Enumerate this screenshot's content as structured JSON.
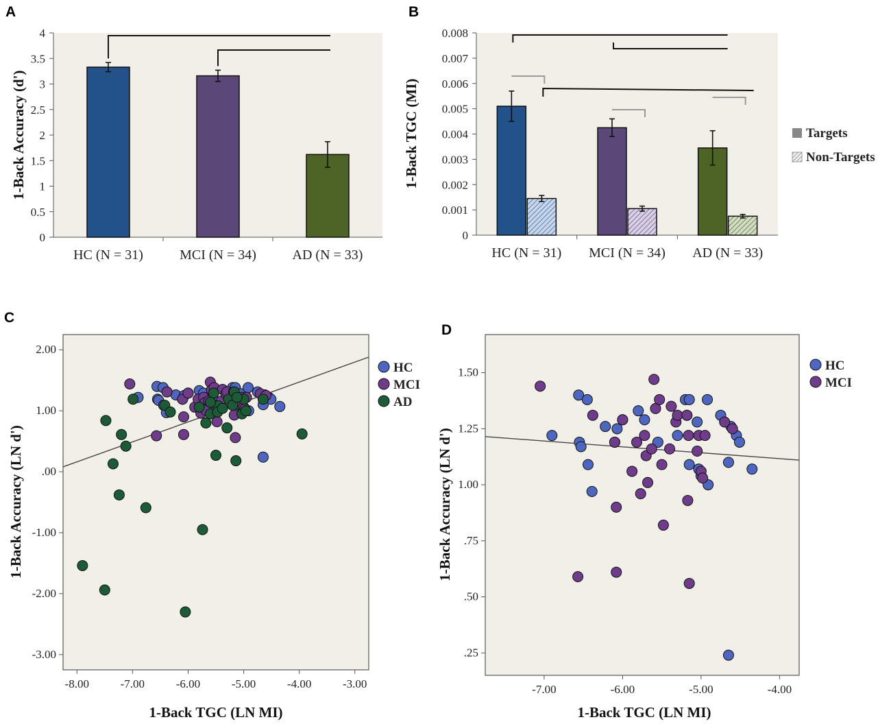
{
  "panels": {
    "a": "A",
    "b": "B",
    "c": "C",
    "d": "D"
  },
  "legend_ab": {
    "targets": "Targets",
    "non_targets": "Non-Targets"
  },
  "colors": {
    "hc_bar": "#235189",
    "mci_bar": "#5c4878",
    "ad_bar": "#4e6326",
    "plot_bg": "#f1f0e8",
    "hc_dot": "#4e66c0",
    "mci_dot": "#6f3c8c",
    "ad_dot": "#1c5a38"
  },
  "chart_data": [
    {
      "id": "A",
      "type": "bar",
      "title": "",
      "xlabel": "",
      "ylabel": "1-Back Accuracy (d')",
      "ylim": [
        0,
        4
      ],
      "yticks": [
        "0",
        "0.5",
        "1",
        "1.5",
        "2",
        "2.5",
        "3",
        "3.5",
        "4"
      ],
      "categories": [
        "HC (N = 31)",
        "MCI (N = 34)",
        "AD (N = 33)"
      ],
      "values": [
        3.33,
        3.16,
        1.62
      ],
      "errors": [
        0.09,
        0.11,
        0.25
      ],
      "significance_brackets": [
        [
          0,
          2
        ],
        [
          1,
          2
        ]
      ]
    },
    {
      "id": "B",
      "type": "bar",
      "title": "",
      "xlabel": "",
      "ylabel": "1-Back TGC (MI)",
      "ylim": [
        0,
        0.008
      ],
      "yticks": [
        "0",
        "0.001",
        "0.002",
        "0.003",
        "0.004",
        "0.005",
        "0.006",
        "0.007",
        "0.008"
      ],
      "categories": [
        "HC (N = 31)",
        "MCI (N = 34)",
        "AD (N = 33)"
      ],
      "series": [
        {
          "name": "Targets",
          "values": [
            0.0051,
            0.00425,
            0.00345
          ],
          "errors": [
            0.0006,
            0.00035,
            0.00068
          ]
        },
        {
          "name": "Non-Targets",
          "values": [
            0.00145,
            0.00105,
            0.00075
          ],
          "errors": [
            0.00012,
            0.0001,
            7e-05
          ]
        }
      ],
      "legend": "right",
      "significance_brackets_targets": [
        [
          0,
          2
        ],
        [
          1,
          2
        ]
      ],
      "significance_brackets_targets_vs_nontargets": [
        0,
        1,
        2
      ],
      "significance_brackets_nontargets": [
        [
          0,
          2
        ]
      ]
    },
    {
      "id": "C",
      "type": "scatter",
      "title": "",
      "xlabel": "1-Back TGC (LN MI)",
      "ylabel": "1-Back Accuracy (LN d')",
      "xlim": [
        -8.25,
        -2.75
      ],
      "ylim": [
        -3.25,
        2.25
      ],
      "xticks": [
        "-8.00",
        "-7.00",
        "-6.00",
        "-5.00",
        "-4.00",
        "-3.00"
      ],
      "yticks": [
        "2.00",
        "1.00",
        ".00",
        "-1.00",
        "-2.00",
        "-3.00"
      ],
      "fit_line": [
        [
          -8.25,
          0.08
        ],
        [
          -2.75,
          1.88
        ]
      ],
      "legend": "right",
      "series": [
        {
          "name": "HC",
          "points": [
            [
              -6.9,
              1.22
            ],
            [
              -6.56,
              1.4
            ],
            [
              -6.55,
              1.19
            ],
            [
              -6.53,
              1.17
            ],
            [
              -6.45,
              1.38
            ],
            [
              -6.44,
              1.09
            ],
            [
              -6.39,
              0.97
            ],
            [
              -6.22,
              1.26
            ],
            [
              -6.1,
              1.19
            ],
            [
              -6.07,
              1.25
            ],
            [
              -6.0,
              1.29
            ],
            [
              -5.8,
              1.33
            ],
            [
              -5.72,
              1.29
            ],
            [
              -5.55,
              1.19
            ],
            [
              -5.3,
              1.22
            ],
            [
              -5.2,
              1.38
            ],
            [
              -5.18,
              1.31
            ],
            [
              -5.15,
              1.38
            ],
            [
              -5.15,
              1.09
            ],
            [
              -5.05,
              1.28
            ],
            [
              -5.03,
              1.07
            ],
            [
              -5.0,
              1.04
            ],
            [
              -4.92,
              1.38
            ],
            [
              -4.91,
              1.0
            ],
            [
              -4.75,
              1.31
            ],
            [
              -4.62,
              1.26
            ],
            [
              -4.55,
              1.22
            ],
            [
              -4.51,
              1.19
            ],
            [
              -4.35,
              1.07
            ],
            [
              -4.65,
              1.1
            ],
            [
              -4.65,
              0.24
            ]
          ]
        },
        {
          "name": "MCI",
          "points": [
            [
              -7.05,
              1.44
            ],
            [
              -6.57,
              0.59
            ],
            [
              -6.38,
              1.31
            ],
            [
              -6.1,
              1.19
            ],
            [
              -6.08,
              0.61
            ],
            [
              -6.08,
              0.9
            ],
            [
              -6.0,
              1.29
            ],
            [
              -5.88,
              1.06
            ],
            [
              -5.82,
              1.19
            ],
            [
              -5.77,
              0.96
            ],
            [
              -5.72,
              1.22
            ],
            [
              -5.7,
              1.13
            ],
            [
              -5.68,
              1.01
            ],
            [
              -5.63,
              1.16
            ],
            [
              -5.6,
              1.47
            ],
            [
              -5.58,
              1.34
            ],
            [
              -5.53,
              1.38
            ],
            [
              -5.5,
              1.09
            ],
            [
              -5.48,
              0.82
            ],
            [
              -5.4,
              1.16
            ],
            [
              -5.38,
              1.35
            ],
            [
              -5.32,
              1.28
            ],
            [
              -5.3,
              1.31
            ],
            [
              -5.18,
              1.31
            ],
            [
              -5.17,
              0.93
            ],
            [
              -5.16,
              1.22
            ],
            [
              -5.15,
              0.56
            ],
            [
              -5.05,
              1.15
            ],
            [
              -5.03,
              1.22
            ],
            [
              -5.0,
              1.06
            ],
            [
              -4.98,
              1.03
            ],
            [
              -4.95,
              1.22
            ],
            [
              -4.7,
              1.28
            ],
            [
              -4.6,
              1.25
            ]
          ]
        },
        {
          "name": "AD",
          "points": [
            [
              -7.9,
              -1.54
            ],
            [
              -7.5,
              -1.94
            ],
            [
              -7.48,
              0.84
            ],
            [
              -7.35,
              0.13
            ],
            [
              -7.24,
              -0.38
            ],
            [
              -7.2,
              0.61
            ],
            [
              -7.12,
              0.42
            ],
            [
              -6.99,
              1.19
            ],
            [
              -6.76,
              -0.59
            ],
            [
              -6.42,
              1.09
            ],
            [
              -6.32,
              0.98
            ],
            [
              -6.05,
              -2.3
            ],
            [
              -5.8,
              1.06
            ],
            [
              -5.74,
              -0.95
            ],
            [
              -5.68,
              0.8
            ],
            [
              -5.6,
              0.95
            ],
            [
              -5.54,
              1.29
            ],
            [
              -5.5,
              0.27
            ],
            [
              -5.46,
              1.08
            ],
            [
              -5.47,
              0.98
            ],
            [
              -5.3,
              0.72
            ],
            [
              -5.27,
              1.19
            ],
            [
              -5.2,
              1.09
            ],
            [
              -5.17,
              1.31
            ],
            [
              -5.14,
              0.18
            ],
            [
              -5.03,
              0.95
            ],
            [
              -5.0,
              1.19
            ],
            [
              -4.65,
              1.19
            ],
            [
              -3.95,
              0.62
            ],
            [
              -5.6,
              1.14
            ],
            [
              -5.38,
              1.04
            ],
            [
              -5.12,
              1.22
            ],
            [
              -4.96,
              1.0
            ]
          ]
        }
      ]
    },
    {
      "id": "D",
      "type": "scatter",
      "title": "",
      "xlabel": "1-Back TGC (LN MI)",
      "ylabel": "1-Back Accuracy (LN d')",
      "xlim": [
        -7.75,
        -3.75
      ],
      "ylim": [
        0.15,
        1.67
      ],
      "xticks": [
        "-7.00",
        "-6.00",
        "-5.00",
        "-4.00"
      ],
      "yticks": [
        "1.50",
        "1.25",
        "1.00",
        ".75",
        ".50",
        ".25"
      ],
      "fit_line": [
        [
          -7.75,
          1.215
        ],
        [
          -3.75,
          1.11
        ]
      ],
      "legend": "right",
      "series": [
        {
          "name": "HC",
          "points": [
            [
              -6.9,
              1.22
            ],
            [
              -6.56,
              1.4
            ],
            [
              -6.55,
              1.19
            ],
            [
              -6.53,
              1.17
            ],
            [
              -6.45,
              1.38
            ],
            [
              -6.44,
              1.09
            ],
            [
              -6.39,
              0.97
            ],
            [
              -6.22,
              1.26
            ],
            [
              -6.1,
              1.19
            ],
            [
              -6.07,
              1.25
            ],
            [
              -6.0,
              1.29
            ],
            [
              -5.8,
              1.33
            ],
            [
              -5.72,
              1.29
            ],
            [
              -5.55,
              1.19
            ],
            [
              -5.3,
              1.22
            ],
            [
              -5.2,
              1.38
            ],
            [
              -5.18,
              1.31
            ],
            [
              -5.15,
              1.38
            ],
            [
              -5.15,
              1.09
            ],
            [
              -5.05,
              1.28
            ],
            [
              -5.03,
              1.07
            ],
            [
              -5.0,
              1.04
            ],
            [
              -4.92,
              1.38
            ],
            [
              -4.91,
              1.0
            ],
            [
              -4.75,
              1.31
            ],
            [
              -4.62,
              1.26
            ],
            [
              -4.55,
              1.22
            ],
            [
              -4.51,
              1.19
            ],
            [
              -4.35,
              1.07
            ],
            [
              -4.65,
              1.1
            ],
            [
              -4.65,
              0.24
            ]
          ]
        },
        {
          "name": "MCI",
          "points": [
            [
              -7.05,
              1.44
            ],
            [
              -6.57,
              0.59
            ],
            [
              -6.38,
              1.31
            ],
            [
              -6.1,
              1.19
            ],
            [
              -6.08,
              0.61
            ],
            [
              -6.08,
              0.9
            ],
            [
              -6.0,
              1.29
            ],
            [
              -5.88,
              1.06
            ],
            [
              -5.82,
              1.19
            ],
            [
              -5.77,
              0.96
            ],
            [
              -5.72,
              1.22
            ],
            [
              -5.7,
              1.13
            ],
            [
              -5.68,
              1.01
            ],
            [
              -5.63,
              1.16
            ],
            [
              -5.6,
              1.47
            ],
            [
              -5.58,
              1.34
            ],
            [
              -5.53,
              1.38
            ],
            [
              -5.5,
              1.09
            ],
            [
              -5.48,
              0.82
            ],
            [
              -5.4,
              1.16
            ],
            [
              -5.38,
              1.35
            ],
            [
              -5.32,
              1.28
            ],
            [
              -5.3,
              1.31
            ],
            [
              -5.18,
              1.31
            ],
            [
              -5.17,
              0.93
            ],
            [
              -5.16,
              1.22
            ],
            [
              -5.15,
              0.56
            ],
            [
              -5.05,
              1.15
            ],
            [
              -5.03,
              1.22
            ],
            [
              -5.0,
              1.06
            ],
            [
              -4.98,
              1.03
            ],
            [
              -4.95,
              1.22
            ],
            [
              -4.7,
              1.28
            ],
            [
              -4.6,
              1.25
            ]
          ]
        }
      ]
    }
  ]
}
